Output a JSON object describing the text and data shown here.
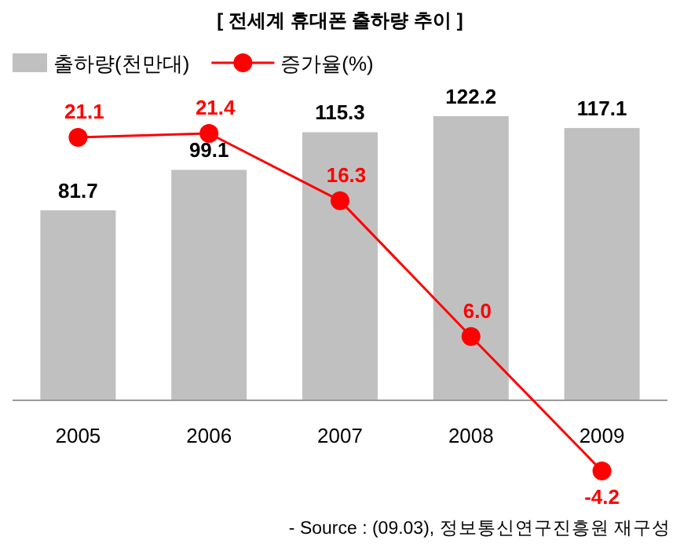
{
  "chart_data": {
    "type": "bar",
    "title": "[ 전세계 휴대폰 출하량 추이 ]",
    "categories": [
      "2005",
      "2006",
      "2007",
      "2008",
      "2009"
    ],
    "legend": "top left",
    "marker": "circle",
    "series": [
      {
        "name": "출하량(천만대)",
        "color": "#c0c0c0",
        "values": [
          81.7,
          99.1,
          115.3,
          122.2,
          117.1
        ],
        "value_labels": [
          "81.7",
          "99.1",
          "115.3",
          "122.2",
          "117.1"
        ]
      },
      {
        "name": "증가율(%)",
        "type": "line",
        "axis": "y2",
        "color": "#ff0000",
        "values": [
          21.1,
          21.4,
          16.3,
          6.0,
          -4.2
        ],
        "value_labels": [
          "21.1",
          "21.4",
          "16.3",
          "6.0",
          "-4.2"
        ]
      }
    ],
    "annotations": [
      "- Source : (09.03), 정보통신연구진흥원 재구성"
    ]
  }
}
